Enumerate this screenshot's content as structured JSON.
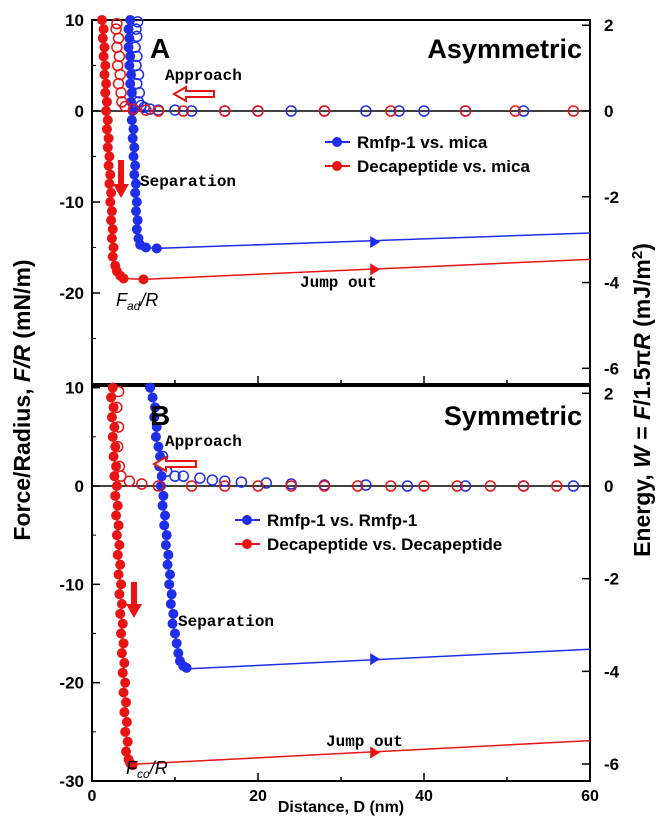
{
  "figure": {
    "ylabel_left": "Force/Radius, F/R (mN/m)",
    "ylabel_right": "Energy, W = F/1.5πR (mJ/m²)",
    "xlabel": "Distance, D (nm)",
    "colors": {
      "blue": "#1f2ee8",
      "red": "#e81414"
    }
  },
  "chart_data": [
    {
      "type": "scatter",
      "panel": "A",
      "title": "Asymmetric",
      "xlim": [
        0,
        60
      ],
      "ylim": [
        -30,
        10
      ],
      "y2lim": [
        -6.37,
        2.12
      ],
      "xticks": [],
      "yticks": [
        10,
        0,
        -10,
        -20
      ],
      "y2ticks": [
        2,
        0,
        -2,
        -4,
        -6
      ],
      "annotations": {
        "approach": "Approach",
        "separation": "Separation",
        "jump_out": "Jump out",
        "fad": "F_ad/R"
      },
      "series": [
        {
          "name": "Rmfp-1 vs. mica",
          "color": "#1f2ee8",
          "approach": [
            [
              5.5,
              9.8
            ],
            [
              5.3,
              9
            ],
            [
              5.4,
              8.2
            ],
            [
              5.2,
              7
            ],
            [
              5.4,
              6
            ],
            [
              5.3,
              5
            ],
            [
              5.6,
              4
            ],
            [
              5.4,
              3
            ],
            [
              5.7,
              2
            ],
            [
              5.6,
              1
            ],
            [
              5.9,
              0.6
            ],
            [
              6.3,
              0.4
            ],
            [
              7,
              0.2
            ],
            [
              8,
              0.1
            ],
            [
              10,
              0.1
            ],
            [
              12,
              0
            ],
            [
              16,
              0
            ],
            [
              20,
              0
            ],
            [
              24,
              0
            ],
            [
              28,
              0
            ],
            [
              33,
              0
            ],
            [
              37,
              0
            ],
            [
              40,
              0
            ],
            [
              45,
              0
            ],
            [
              52,
              0
            ]
          ],
          "separation": [
            [
              4.6,
              10
            ],
            [
              4.4,
              9
            ],
            [
              4.5,
              8
            ],
            [
              4.4,
              7
            ],
            [
              4.6,
              6
            ],
            [
              4.5,
              5
            ],
            [
              4.7,
              4
            ],
            [
              4.6,
              3
            ],
            [
              4.8,
              2
            ],
            [
              4.7,
              1
            ],
            [
              4.9,
              0
            ],
            [
              4.8,
              -1
            ],
            [
              5,
              -2
            ],
            [
              4.9,
              -3
            ],
            [
              5.1,
              -4
            ],
            [
              5,
              -5
            ],
            [
              5.2,
              -6
            ],
            [
              5.1,
              -7
            ],
            [
              5.3,
              -8
            ],
            [
              5.2,
              -9
            ],
            [
              5.4,
              -10
            ],
            [
              5.3,
              -11
            ],
            [
              5.5,
              -12
            ],
            [
              5.4,
              -13
            ],
            [
              5.6,
              -14
            ],
            [
              5.8,
              -14.7
            ],
            [
              6.5,
              -15
            ],
            [
              7.8,
              -15.1
            ]
          ],
          "jump_line": [
            [
              7.8,
              -15.1
            ],
            [
              60,
              -13.4
            ]
          ],
          "arrow_at": [
            34,
            -14.4
          ]
        },
        {
          "name": "Decapeptide vs. mica",
          "color": "#e81414",
          "approach": [
            [
              3,
              9.6
            ],
            [
              2.9,
              9
            ],
            [
              3.2,
              8
            ],
            [
              3,
              7
            ],
            [
              3.3,
              6
            ],
            [
              3.1,
              5
            ],
            [
              3.4,
              4
            ],
            [
              3.2,
              3
            ],
            [
              3.5,
              2
            ],
            [
              3.6,
              1
            ],
            [
              4,
              0.5
            ],
            [
              5,
              0.2
            ],
            [
              6.5,
              0.1
            ],
            [
              8,
              0
            ],
            [
              11,
              0
            ],
            [
              16,
              0
            ],
            [
              20,
              0
            ],
            [
              28,
              0
            ],
            [
              36,
              0
            ],
            [
              45,
              0
            ],
            [
              51,
              0
            ],
            [
              58,
              0
            ]
          ],
          "separation": [
            [
              1.2,
              10
            ],
            [
              1.4,
              9
            ],
            [
              1.3,
              8
            ],
            [
              1.5,
              7
            ],
            [
              1.4,
              6
            ],
            [
              1.6,
              5
            ],
            [
              1.5,
              4
            ],
            [
              1.7,
              3
            ],
            [
              1.6,
              2
            ],
            [
              1.8,
              1
            ],
            [
              1.7,
              0
            ],
            [
              1.9,
              -1
            ],
            [
              1.8,
              -2
            ],
            [
              2,
              -3
            ],
            [
              1.9,
              -4
            ],
            [
              2.1,
              -5
            ],
            [
              2,
              -6
            ],
            [
              2.2,
              -7
            ],
            [
              2.1,
              -8
            ],
            [
              2.3,
              -9
            ],
            [
              2.2,
              -10
            ],
            [
              2.4,
              -11
            ],
            [
              2.3,
              -12
            ],
            [
              2.5,
              -13
            ],
            [
              2.4,
              -14
            ],
            [
              2.6,
              -15
            ],
            [
              2.5,
              -16
            ],
            [
              2.8,
              -17
            ],
            [
              3,
              -17.6
            ],
            [
              3.4,
              -18.1
            ],
            [
              3.8,
              -18.4
            ],
            [
              6.2,
              -18.5
            ]
          ],
          "jump_line": [
            [
              6.2,
              -18.5
            ],
            [
              60,
              -16.3
            ]
          ],
          "arrow_at": [
            34,
            -17.4
          ]
        }
      ]
    },
    {
      "type": "scatter",
      "panel": "B",
      "title": "Symmetric",
      "xlim": [
        0,
        60
      ],
      "ylim": [
        -30,
        10
      ],
      "y2lim": [
        -6.37,
        2.12
      ],
      "xticks": [
        0,
        20,
        40,
        60
      ],
      "yticks": [
        10,
        0,
        -10,
        -20,
        -30
      ],
      "y2ticks": [
        2,
        0,
        -2,
        -4,
        -6
      ],
      "annotations": {
        "approach": "Approach",
        "separation": "Separation",
        "jump_out": "Jump out",
        "fco": "F_co/R"
      },
      "series": [
        {
          "name": "Rmfp-1 vs. Rmfp-1",
          "color": "#1f2ee8",
          "approach": [
            [
              8.5,
              3
            ],
            [
              9,
              1.5
            ],
            [
              10,
              1
            ],
            [
              11,
              1
            ],
            [
              13,
              0.8
            ],
            [
              14.5,
              0.6
            ],
            [
              16,
              0.5
            ],
            [
              18,
              0.4
            ],
            [
              21,
              0.3
            ],
            [
              24,
              0.2
            ],
            [
              28,
              0.1
            ],
            [
              33,
              0.1
            ],
            [
              38,
              0
            ],
            [
              45,
              0
            ],
            [
              52,
              0
            ],
            [
              58,
              0
            ]
          ],
          "separation": [
            [
              7,
              10
            ],
            [
              7.3,
              9
            ],
            [
              7.6,
              8
            ],
            [
              7.5,
              7
            ],
            [
              7.8,
              6
            ],
            [
              7.7,
              5
            ],
            [
              8,
              4
            ],
            [
              8.2,
              3
            ],
            [
              8.1,
              2
            ],
            [
              8.4,
              1
            ],
            [
              8.3,
              0
            ],
            [
              8.6,
              -1
            ],
            [
              8.5,
              -2
            ],
            [
              8.8,
              -3
            ],
            [
              8.7,
              -4
            ],
            [
              9,
              -5
            ],
            [
              8.9,
              -6
            ],
            [
              9.2,
              -7
            ],
            [
              9.1,
              -8
            ],
            [
              9.4,
              -9
            ],
            [
              9.3,
              -10
            ],
            [
              9.6,
              -11
            ],
            [
              9.5,
              -12
            ],
            [
              9.8,
              -13
            ],
            [
              9.7,
              -14
            ],
            [
              10,
              -15
            ],
            [
              10.2,
              -16
            ],
            [
              10.4,
              -17
            ],
            [
              10.6,
              -17.8
            ],
            [
              11,
              -18.3
            ],
            [
              11.4,
              -18.5
            ]
          ],
          "jump_line": [
            [
              11.4,
              -18.6
            ],
            [
              60,
              -16.6
            ]
          ],
          "arrow_at": [
            34,
            -17.6
          ]
        },
        {
          "name": "Decapeptide vs. Decapeptide",
          "color": "#e81414",
          "approach": [
            [
              3.2,
              9.6
            ],
            [
              3,
              8
            ],
            [
              3.2,
              6
            ],
            [
              3.1,
              4
            ],
            [
              3.3,
              2
            ],
            [
              3.5,
              1
            ],
            [
              4.5,
              0.5
            ],
            [
              6,
              0.2
            ],
            [
              8,
              0
            ],
            [
              12,
              0
            ],
            [
              16,
              0
            ],
            [
              20,
              0
            ],
            [
              24,
              0
            ],
            [
              28,
              0
            ],
            [
              32,
              0
            ],
            [
              36,
              0
            ],
            [
              40,
              0
            ],
            [
              44,
              0
            ],
            [
              48,
              0
            ],
            [
              52,
              0
            ],
            [
              56,
              0
            ]
          ],
          "separation": [
            [
              2.5,
              10
            ],
            [
              2.3,
              9
            ],
            [
              2.6,
              8
            ],
            [
              2.4,
              7
            ],
            [
              2.7,
              6
            ],
            [
              2.5,
              5
            ],
            [
              2.8,
              4
            ],
            [
              2.6,
              3
            ],
            [
              2.9,
              2
            ],
            [
              2.7,
              1
            ],
            [
              3,
              0
            ],
            [
              2.8,
              -1
            ],
            [
              3.1,
              -2
            ],
            [
              2.9,
              -3
            ],
            [
              3.2,
              -4
            ],
            [
              3,
              -5
            ],
            [
              3.3,
              -6
            ],
            [
              3.1,
              -7
            ],
            [
              3.4,
              -8
            ],
            [
              3.2,
              -9
            ],
            [
              3.5,
              -10
            ],
            [
              3.3,
              -11
            ],
            [
              3.6,
              -12
            ],
            [
              3.4,
              -13
            ],
            [
              3.7,
              -14
            ],
            [
              3.5,
              -15
            ],
            [
              3.8,
              -16
            ],
            [
              3.6,
              -17
            ],
            [
              3.9,
              -18
            ],
            [
              3.7,
              -19
            ],
            [
              4,
              -20
            ],
            [
              3.8,
              -21
            ],
            [
              4.1,
              -22
            ],
            [
              3.9,
              -23
            ],
            [
              4.2,
              -24
            ],
            [
              4,
              -25
            ],
            [
              4.3,
              -26
            ],
            [
              4.1,
              -27
            ],
            [
              4.4,
              -27.8
            ],
            [
              4.6,
              -28.2
            ],
            [
              4.9,
              -28.4
            ]
          ],
          "jump_line": [
            [
              4.9,
              -28.3
            ],
            [
              60,
              -25.9
            ]
          ],
          "arrow_at": [
            34,
            -27.1
          ]
        }
      ]
    }
  ]
}
